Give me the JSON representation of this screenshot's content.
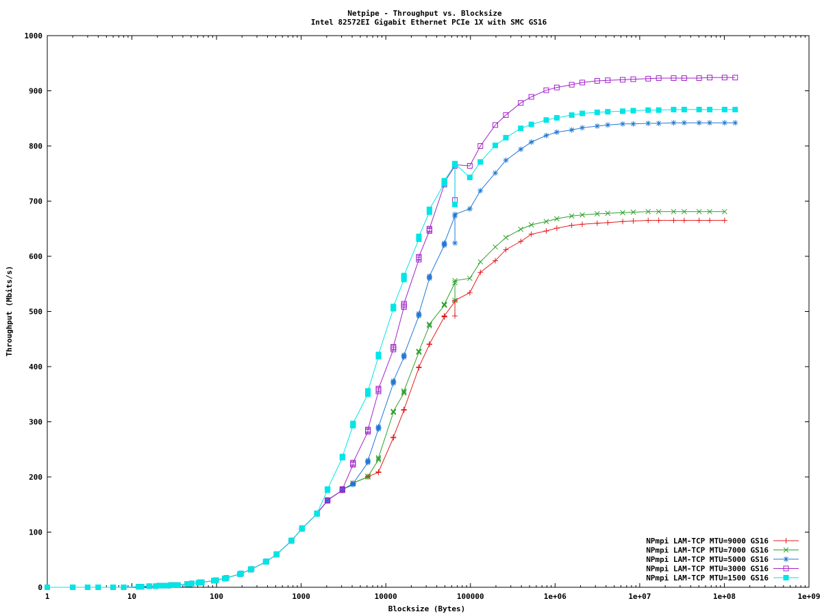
{
  "chart_data": {
    "type": "line",
    "title": "Netpipe - Throughput vs. Blocksize",
    "subtitle": "Intel 82572EI Gigabit Ethernet PCIe 1X with SMC GS16",
    "xlabel": "Blocksize (Bytes)",
    "ylabel": "Throughput (Mbits/s)",
    "xscale": "log",
    "xlim": [
      1,
      1000000000
    ],
    "ylim": [
      0,
      1000
    ],
    "x_ticks": [
      1,
      10,
      100,
      1000,
      10000,
      100000,
      1000000,
      10000000,
      100000000,
      1000000000
    ],
    "x_tick_labels": [
      "1",
      "10",
      "100",
      "1000",
      "10000",
      "100000",
      "1e+06",
      "1e+07",
      "1e+08",
      "1e+09"
    ],
    "y_ticks": [
      0,
      100,
      200,
      300,
      400,
      500,
      600,
      700,
      800,
      900,
      1000
    ],
    "grid": false,
    "legend_position": "bottom-right",
    "colors": {
      "mtu9000": "#e41a1c",
      "mtu7000": "#2ca02c",
      "mtu5000": "#1f77d4",
      "mtu3000": "#a020c8",
      "mtu1500": "#00e5e5"
    },
    "series": [
      {
        "name": "NPmpi LAM-TCP MTU=9000 GS16",
        "color": "#e41a1c",
        "marker": "plus",
        "x": [
          1,
          2,
          3,
          4,
          6,
          8,
          12,
          13,
          16,
          19,
          21,
          24,
          27,
          29,
          32,
          35,
          45,
          48,
          51,
          61,
          64,
          67,
          93,
          96,
          99,
          125,
          128,
          131,
          189,
          192,
          195,
          253,
          256,
          259,
          381,
          384,
          387,
          509,
          512,
          515,
          765,
          768,
          771,
          1021,
          1024,
          1027,
          1533,
          1536,
          1539,
          2045,
          2048,
          2051,
          3069,
          3072,
          3075,
          4093,
          4096,
          4099,
          6141,
          6144,
          6147,
          8189,
          8192,
          8195,
          12285,
          12288,
          12291,
          16381,
          16384,
          16387,
          24573,
          24576,
          24579,
          32765,
          32768,
          32771,
          49149,
          49152,
          49155,
          65533,
          65536,
          65539,
          98301,
          131072,
          196608,
          262144,
          393216,
          524288,
          786432,
          1048576,
          1572864,
          2097152,
          3145728,
          4194304,
          6291456,
          8388608,
          12582912,
          16777216,
          25165824,
          33554432,
          50331648,
          67108864,
          100663296
        ],
        "y": [
          0,
          0,
          0,
          0,
          0,
          0,
          1,
          1,
          2,
          2,
          3,
          3,
          3,
          4,
          4,
          4,
          6,
          6,
          7,
          8,
          9,
          9,
          12,
          12,
          13,
          16,
          16,
          17,
          24,
          24,
          25,
          32,
          33,
          33,
          46,
          46,
          47,
          59,
          60,
          60,
          84,
          84,
          85,
          106,
          107,
          107,
          133,
          134,
          134,
          157,
          157,
          158,
          176,
          176,
          177,
          188,
          188,
          189,
          200,
          200,
          201,
          208,
          209,
          209,
          271,
          272,
          272,
          321,
          322,
          322,
          398,
          399,
          399,
          440,
          441,
          441,
          490,
          491,
          492,
          518,
          492,
          520,
          534,
          571,
          592,
          612,
          627,
          640,
          646,
          651,
          656,
          658,
          660,
          661,
          663,
          664,
          665,
          665,
          665,
          665,
          665,
          665,
          665
        ]
      },
      {
        "name": "NPmpi LAM-TCP MTU=7000 GS16",
        "color": "#2ca02c",
        "marker": "x",
        "x": [
          1,
          2,
          3,
          4,
          6,
          8,
          12,
          13,
          16,
          19,
          21,
          24,
          27,
          29,
          32,
          35,
          45,
          48,
          51,
          61,
          64,
          67,
          93,
          96,
          99,
          125,
          128,
          131,
          189,
          192,
          195,
          253,
          256,
          259,
          381,
          384,
          387,
          509,
          512,
          515,
          765,
          768,
          771,
          1021,
          1024,
          1027,
          1533,
          1536,
          1539,
          2045,
          2048,
          2051,
          3069,
          3072,
          3075,
          4093,
          4096,
          4099,
          6141,
          6144,
          6147,
          8189,
          8192,
          8195,
          12285,
          12288,
          12291,
          16381,
          16384,
          16387,
          24573,
          24576,
          24579,
          32765,
          32768,
          32771,
          49149,
          49152,
          49155,
          65533,
          65536,
          65539,
          98301,
          131072,
          196608,
          262144,
          393216,
          524288,
          786432,
          1048576,
          1572864,
          2097152,
          3145728,
          4194304,
          6291456,
          8388608,
          12582912,
          16777216,
          25165824,
          33554432,
          50331648,
          67108864,
          100663296
        ],
        "y": [
          0,
          0,
          0,
          0,
          0,
          0,
          1,
          1,
          2,
          2,
          3,
          3,
          3,
          4,
          4,
          4,
          6,
          6,
          7,
          8,
          9,
          9,
          12,
          12,
          13,
          16,
          16,
          17,
          24,
          24,
          25,
          32,
          33,
          33,
          46,
          46,
          47,
          59,
          60,
          60,
          84,
          84,
          85,
          106,
          107,
          107,
          133,
          134,
          134,
          157,
          157,
          158,
          176,
          176,
          177,
          188,
          188,
          189,
          200,
          201,
          201,
          231,
          233,
          235,
          317,
          318,
          319,
          352,
          354,
          356,
          426,
          427,
          428,
          474,
          476,
          477,
          511,
          512,
          513,
          552,
          520,
          556,
          560,
          590,
          617,
          634,
          649,
          657,
          663,
          668,
          673,
          675,
          677,
          678,
          679,
          680,
          681,
          681,
          681,
          681,
          681,
          681,
          681
        ]
      },
      {
        "name": "NPmpi LAM-TCP MTU=5000 GS16",
        "color": "#1f77d4",
        "marker": "star",
        "x": [
          1,
          2,
          3,
          4,
          6,
          8,
          12,
          13,
          16,
          19,
          21,
          24,
          27,
          29,
          32,
          35,
          45,
          48,
          51,
          61,
          64,
          67,
          93,
          96,
          99,
          125,
          128,
          131,
          189,
          192,
          195,
          253,
          256,
          259,
          381,
          384,
          387,
          509,
          512,
          515,
          765,
          768,
          771,
          1021,
          1024,
          1027,
          1533,
          1536,
          1539,
          2045,
          2048,
          2051,
          3069,
          3072,
          3075,
          4093,
          4096,
          4099,
          6141,
          6144,
          6147,
          8189,
          8192,
          8195,
          12285,
          12288,
          12291,
          16381,
          16384,
          16387,
          24573,
          24576,
          24579,
          32765,
          32768,
          32771,
          49149,
          49152,
          49155,
          65533,
          65536,
          65539,
          98301,
          131072,
          196608,
          262144,
          393216,
          524288,
          786432,
          1048576,
          1572864,
          2097152,
          3145728,
          4194304,
          6291456,
          8388608,
          12582912,
          16777216,
          25165824,
          33554432,
          50331648,
          67108864,
          100663296,
          134217728
        ],
        "y": [
          0,
          0,
          0,
          0,
          0,
          0,
          1,
          1,
          2,
          2,
          3,
          3,
          3,
          4,
          4,
          4,
          6,
          6,
          7,
          8,
          9,
          9,
          12,
          12,
          13,
          16,
          16,
          17,
          24,
          24,
          25,
          32,
          33,
          33,
          46,
          46,
          47,
          59,
          60,
          60,
          84,
          84,
          85,
          106,
          107,
          107,
          133,
          134,
          134,
          157,
          157,
          158,
          176,
          176,
          177,
          186,
          187,
          188,
          226,
          228,
          230,
          287,
          289,
          291,
          370,
          372,
          374,
          417,
          419,
          421,
          492,
          494,
          496,
          560,
          562,
          564,
          620,
          622,
          624,
          673,
          624,
          676,
          686,
          719,
          751,
          774,
          794,
          807,
          819,
          825,
          829,
          833,
          836,
          838,
          840,
          840,
          841,
          841,
          842,
          842,
          842,
          842,
          842,
          842
        ]
      },
      {
        "name": "NPmpi LAM-TCP MTU=3000 GS16",
        "color": "#a020c8",
        "marker": "open-square",
        "x": [
          1,
          2,
          3,
          4,
          6,
          8,
          12,
          13,
          16,
          19,
          21,
          24,
          27,
          29,
          32,
          35,
          45,
          48,
          51,
          61,
          64,
          67,
          93,
          96,
          99,
          125,
          128,
          131,
          189,
          192,
          195,
          253,
          256,
          259,
          381,
          384,
          387,
          509,
          512,
          515,
          765,
          768,
          771,
          1021,
          1024,
          1027,
          1533,
          1536,
          1539,
          2045,
          2048,
          2051,
          3069,
          3072,
          3075,
          4093,
          4096,
          4099,
          6141,
          6144,
          6147,
          8189,
          8192,
          8195,
          12285,
          12288,
          12291,
          16381,
          16384,
          16387,
          24573,
          24576,
          24579,
          32765,
          32768,
          32771,
          49149,
          49152,
          49155,
          65533,
          65536,
          65539,
          98301,
          131072,
          196608,
          262144,
          393216,
          524288,
          786432,
          1048576,
          1572864,
          2097152,
          3145728,
          4194304,
          6291456,
          8388608,
          12582912,
          16777216,
          25165824,
          33554432,
          50331648,
          67108864,
          100663296,
          134217728
        ],
        "y": [
          0,
          0,
          0,
          0,
          0,
          0,
          1,
          1,
          2,
          2,
          3,
          3,
          3,
          4,
          4,
          4,
          6,
          6,
          7,
          8,
          9,
          9,
          12,
          12,
          13,
          16,
          16,
          17,
          24,
          24,
          25,
          32,
          33,
          33,
          46,
          46,
          47,
          59,
          60,
          60,
          84,
          84,
          85,
          106,
          107,
          107,
          133,
          134,
          134,
          157,
          157,
          158,
          176,
          177,
          178,
          222,
          224,
          226,
          282,
          284,
          286,
          355,
          358,
          360,
          431,
          434,
          436,
          508,
          511,
          514,
          594,
          597,
          599,
          646,
          648,
          650,
          730,
          732,
          734,
          764,
          702,
          766,
          764,
          800,
          838,
          856,
          878,
          889,
          901,
          906,
          911,
          915,
          918,
          919,
          920,
          921,
          922,
          923,
          923,
          923,
          923,
          924,
          924,
          924
        ]
      },
      {
        "name": "NPmpi LAM-TCP MTU=1500 GS16",
        "color": "#00e5e5",
        "marker": "filled-square",
        "x": [
          1,
          2,
          3,
          4,
          6,
          8,
          12,
          13,
          16,
          19,
          21,
          24,
          27,
          29,
          32,
          35,
          45,
          48,
          51,
          61,
          64,
          67,
          93,
          96,
          99,
          125,
          128,
          131,
          189,
          192,
          195,
          253,
          256,
          259,
          381,
          384,
          387,
          509,
          512,
          515,
          765,
          768,
          771,
          1021,
          1024,
          1027,
          1533,
          1536,
          1539,
          2045,
          2048,
          2051,
          3069,
          3072,
          3075,
          4093,
          4096,
          4099,
          6141,
          6144,
          6147,
          8189,
          8192,
          8195,
          12285,
          12288,
          12291,
          16381,
          16384,
          16387,
          24573,
          24576,
          24579,
          32765,
          32768,
          32771,
          49149,
          49152,
          49155,
          65533,
          65536,
          65539,
          98301,
          131072,
          196608,
          262144,
          393216,
          524288,
          786432,
          1048576,
          1572864,
          2097152,
          3145728,
          4194304,
          6291456,
          8388608,
          12582912,
          16777216,
          25165824,
          33554432,
          50331648,
          67108864,
          100663296,
          134217728
        ],
        "y": [
          0,
          0,
          0,
          0,
          0,
          0,
          1,
          1,
          2,
          2,
          3,
          3,
          3,
          4,
          4,
          4,
          6,
          6,
          7,
          8,
          9,
          9,
          12,
          12,
          13,
          16,
          16,
          17,
          24,
          24,
          25,
          32,
          33,
          33,
          46,
          46,
          47,
          59,
          60,
          60,
          84,
          84,
          85,
          106,
          107,
          107,
          133,
          134,
          134,
          176,
          177,
          178,
          235,
          236,
          237,
          293,
          295,
          297,
          350,
          353,
          356,
          418,
          420,
          422,
          505,
          507,
          509,
          558,
          562,
          565,
          631,
          634,
          636,
          680,
          683,
          685,
          732,
          735,
          737,
          766,
          694,
          768,
          743,
          771,
          801,
          815,
          832,
          839,
          847,
          851,
          856,
          859,
          861,
          862,
          863,
          864,
          865,
          865,
          866,
          866,
          866,
          866,
          866,
          866
        ]
      }
    ]
  }
}
